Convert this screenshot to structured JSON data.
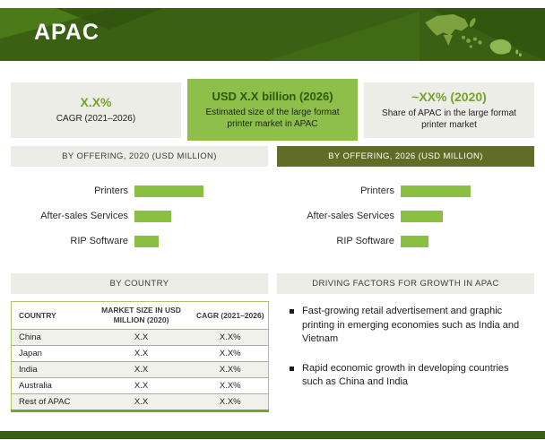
{
  "header": {
    "title": "APAC"
  },
  "stats": [
    {
      "value": "X.X%",
      "desc": "CAGR (2021–2026)"
    },
    {
      "value": "USD X.X billion (2026)",
      "desc": "Estimated size of the large format printer market in APAC"
    },
    {
      "value": "~XX% (2020)",
      "desc": "Share of APAC in the large format printer market"
    }
  ],
  "driving_factors": {
    "title": "DRIVING FACTORS FOR GROWTH IN APAC",
    "bullets": [
      "Fast-growing retail advertisement and graphic printing in emerging economies such as India and Vietnam",
      "Rapid economic growth in developing countries such as China and India"
    ]
  },
  "chart_data": [
    {
      "type": "bar",
      "orientation": "horizontal",
      "title": "BY OFFERING, 2020 (USD MILLION)",
      "categories": [
        "Printers",
        "After-sales Services",
        "RIP Software"
      ],
      "values": [
        77,
        41,
        27
      ],
      "value_note": "numeric labels not shown in figure; values are relative bar lengths in px",
      "bar_color": "#8bbf3f",
      "grid": false,
      "legend": false
    },
    {
      "type": "bar",
      "orientation": "horizontal",
      "title": "BY OFFERING, 2026 (USD MILLION)",
      "categories": [
        "Printers",
        "After-sales Services",
        "RIP Software"
      ],
      "values": [
        78,
        47,
        31
      ],
      "value_note": "numeric labels not shown in figure; values are relative bar lengths in px",
      "bar_color": "#8bbf3f",
      "grid": false,
      "legend": false
    },
    {
      "type": "table",
      "title": "BY COUNTRY",
      "columns": [
        "COUNTRY",
        "MARKET SIZE IN USD MILLION (2020)",
        "CAGR (2021–2026)"
      ],
      "rows": [
        [
          "China",
          "X.X",
          "X.X%"
        ],
        [
          "Japan",
          "X.X",
          "X.X%"
        ],
        [
          "India",
          "X.X",
          "X.X%"
        ],
        [
          "Australia",
          "X.X",
          "X.X%"
        ],
        [
          "Rest of APAC",
          "X.X",
          "X.X%"
        ]
      ]
    }
  ],
  "colors": {
    "banner_green": "#3a6113",
    "accent_green": "#8bbf3f",
    "value_green": "#76a22d",
    "olive_header": "#5f6d26",
    "panel_gray": "#ebede6"
  }
}
